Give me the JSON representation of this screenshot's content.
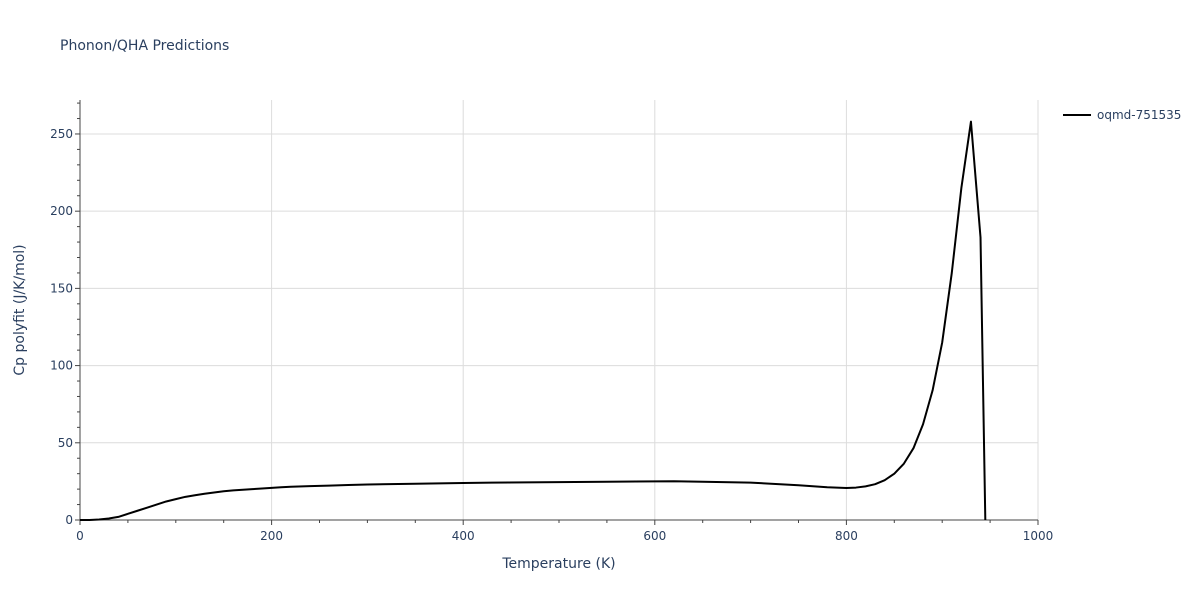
{
  "chart_data": {
    "type": "line",
    "title": "Phonon/QHA Predictions",
    "xlabel": "Temperature (K)",
    "ylabel": "Cp polyfit (J/K/mol)",
    "xlim": [
      0,
      1000
    ],
    "ylim": [
      0,
      272
    ],
    "x_ticks": [
      0,
      200,
      400,
      600,
      800,
      1000
    ],
    "y_ticks": [
      0,
      50,
      100,
      150,
      200,
      250
    ],
    "grid": true,
    "legend_position": "top-right",
    "series": [
      {
        "name": "oqmd-751535",
        "color": "#000000",
        "x": [
          0,
          10,
          20,
          30,
          40,
          50,
          60,
          70,
          80,
          90,
          100,
          110,
          120,
          130,
          140,
          150,
          160,
          170,
          180,
          190,
          200,
          210,
          220,
          240,
          260,
          280,
          300,
          350,
          400,
          430,
          500,
          550,
          600,
          620,
          650,
          700,
          750,
          780,
          800,
          810,
          820,
          830,
          840,
          850,
          860,
          870,
          880,
          890,
          900,
          910,
          920,
          930,
          940,
          945
        ],
        "y": [
          0,
          0,
          0.3,
          1.0,
          2.0,
          4.0,
          6.0,
          8.0,
          10.0,
          12.0,
          13.5,
          15.0,
          16.0,
          17.0,
          17.8,
          18.6,
          19.2,
          19.6,
          20.0,
          20.4,
          20.8,
          21.2,
          21.5,
          21.9,
          22.3,
          22.7,
          23.0,
          23.5,
          24.0,
          24.2,
          24.5,
          24.8,
          25.0,
          25.1,
          24.8,
          24.2,
          22.5,
          21.2,
          20.7,
          21.0,
          21.8,
          23.2,
          25.8,
          30.0,
          36.5,
          46.5,
          62.0,
          84.0,
          115.0,
          160.0,
          215.0,
          258.0,
          183.0,
          0.0
        ]
      }
    ]
  }
}
